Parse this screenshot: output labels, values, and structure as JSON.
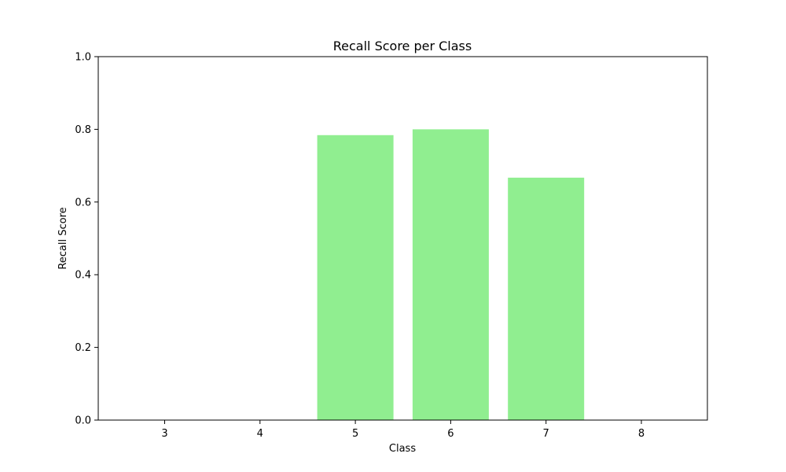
{
  "chart_data": {
    "type": "bar",
    "title": "Recall Score per Class",
    "xlabel": "Class",
    "ylabel": "Recall Score",
    "categories": [
      "3",
      "4",
      "5",
      "6",
      "7",
      "8"
    ],
    "values": [
      0.0,
      0.0,
      0.784,
      0.8,
      0.667,
      0.0
    ],
    "ylim": [
      0,
      1.0
    ],
    "yticks": [
      "0.0",
      "0.2",
      "0.4",
      "0.6",
      "0.8",
      "1.0"
    ],
    "grid": false,
    "legend": "none",
    "bar_color": "#90ee90"
  }
}
